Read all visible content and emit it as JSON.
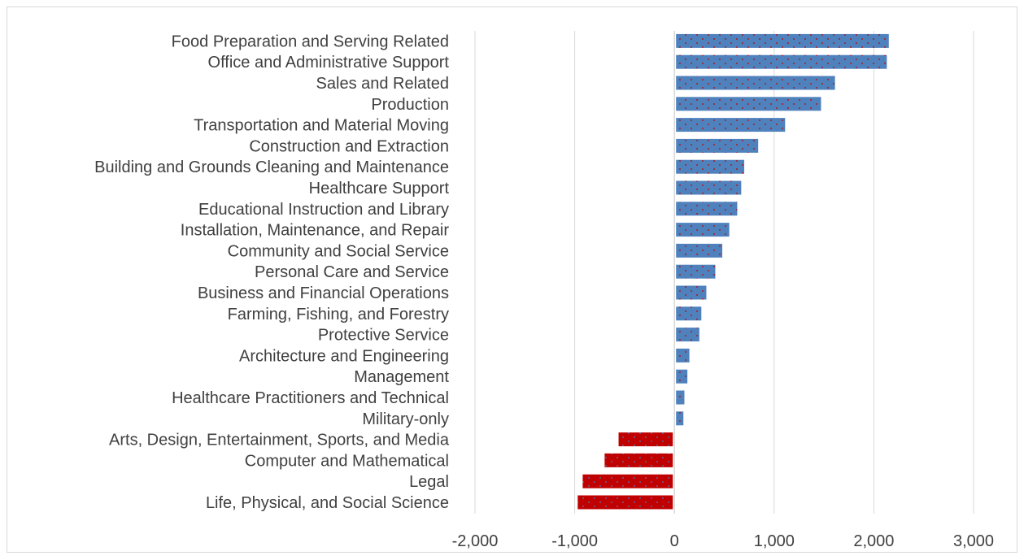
{
  "chart_data": {
    "type": "bar",
    "orientation": "horizontal",
    "categories": [
      "Food Preparation and Serving Related",
      "Office and Administrative Support",
      "Sales and Related",
      "Production",
      "Transportation and Material Moving",
      "Construction and Extraction",
      "Building and Grounds Cleaning and Maintenance",
      "Healthcare Support",
      "Educational Instruction and Library",
      "Installation, Maintenance, and Repair",
      "Community and Social Service",
      "Personal Care and Service",
      "Business and Financial Operations",
      "Farming, Fishing, and Forestry",
      "Protective Service",
      "Architecture and Engineering",
      "Management",
      "Healthcare Practitioners and Technical",
      "Military-only",
      "Arts, Design, Entertainment, Sports, and Media",
      "Computer and Mathematical",
      "Legal",
      "Life, Physical, and Social Science"
    ],
    "values": [
      2150,
      2130,
      1610,
      1470,
      1110,
      840,
      700,
      670,
      630,
      550,
      480,
      410,
      320,
      270,
      250,
      150,
      130,
      100,
      90,
      -560,
      -700,
      -920,
      -970
    ],
    "xlim": [
      -2000,
      3000
    ],
    "xticks": [
      "-2,000",
      "-1,000",
      "0",
      "1,000",
      "2,000",
      "3,000"
    ],
    "xtick_values": [
      -2000,
      -1000,
      0,
      1000,
      2000,
      3000
    ],
    "title": "",
    "xlabel": "",
    "ylabel": "",
    "grid": "vertical",
    "legend": "none",
    "colors": {
      "positive": "#4f81bd",
      "negative": "#c00000",
      "positive_dots": "#c00000",
      "negative_dots": "#4f81bd",
      "grid": "#d9d9d9",
      "text": "#404040"
    }
  }
}
